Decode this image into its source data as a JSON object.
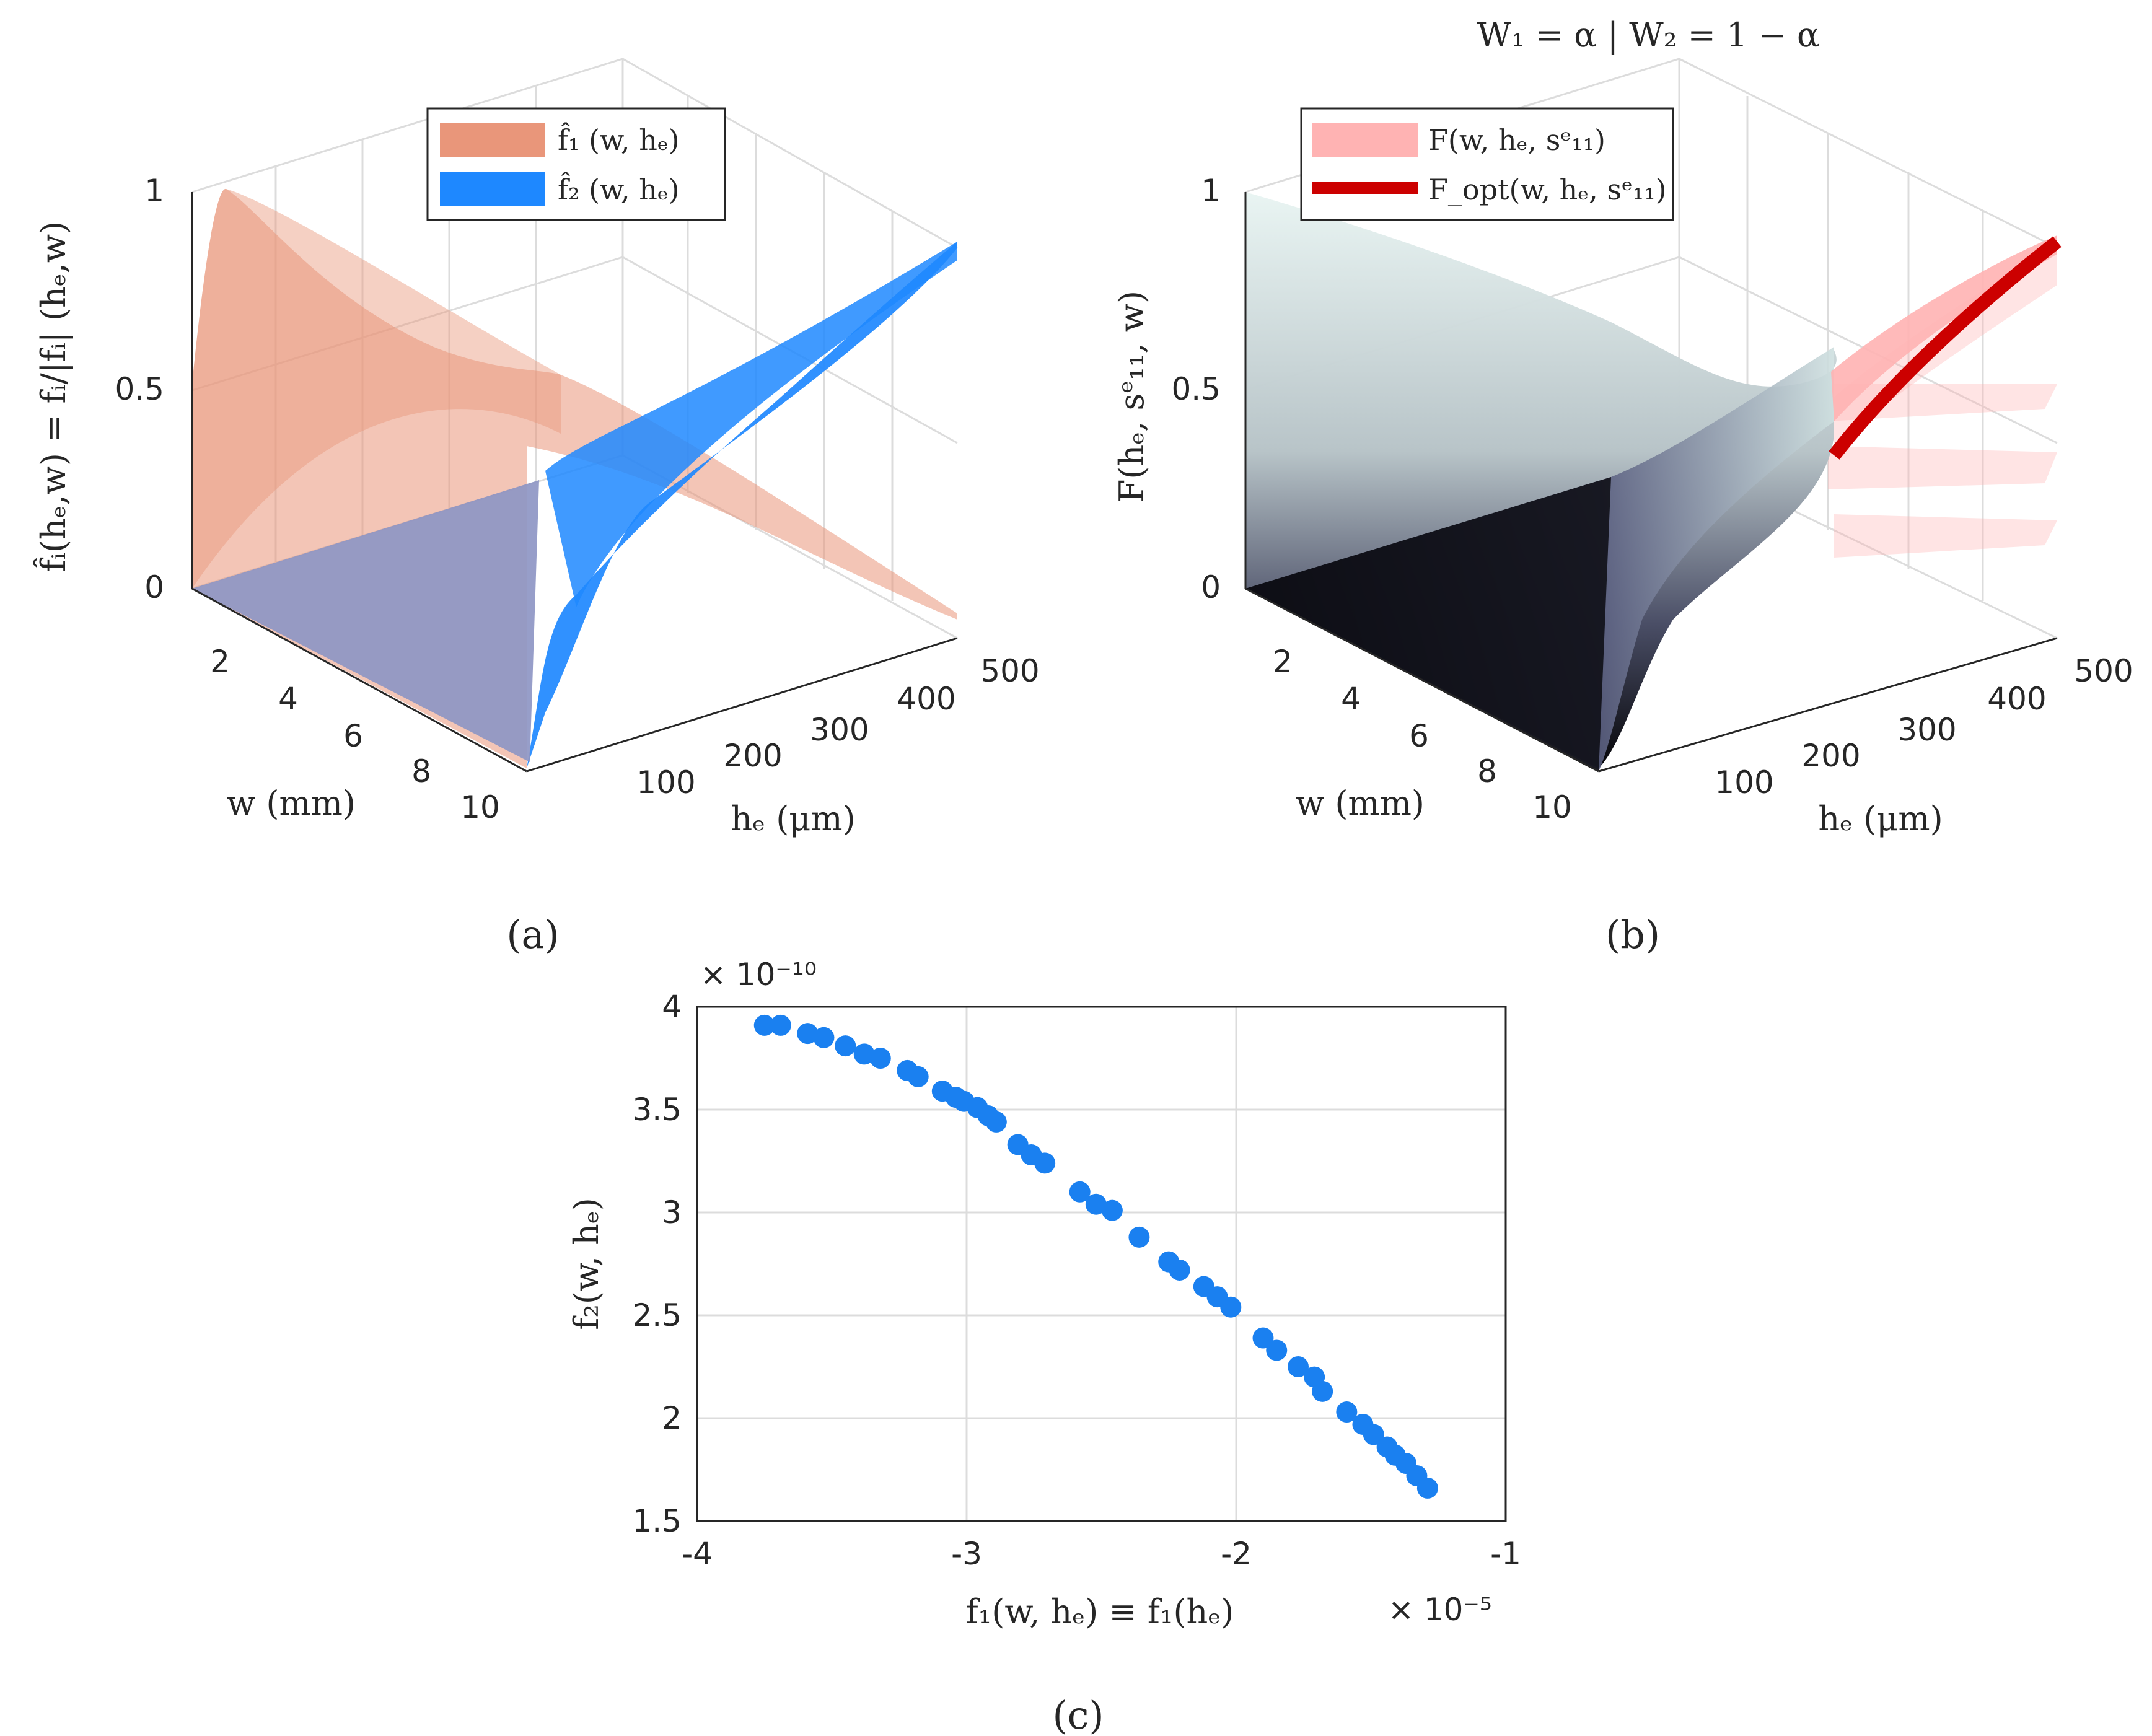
{
  "panels": {
    "a": {
      "label": "(a)",
      "legend": [
        "f̂₁ (w, hₑ)",
        "f̂₂ (w, hₑ)"
      ],
      "zlabel": "f̂ᵢ(hₑ,w) = fᵢ/|fᵢ| (hₑ,w)",
      "xlabel": "w  (mm)",
      "ylabel": "hₑ  (μm)",
      "w_ticks": [
        "2",
        "4",
        "6",
        "8",
        "10"
      ],
      "he_ticks": [
        "100",
        "200",
        "300",
        "400",
        "500"
      ],
      "z_ticks": [
        "0",
        "0.5",
        "1"
      ],
      "colors": {
        "f1": "#e9967a",
        "f2": "#1e88ff",
        "overlap": "#8e96c4"
      }
    },
    "b": {
      "label": "(b)",
      "title": "W₁ = α  |  W₂ = 1 − α",
      "legend": [
        "F(w, hₑ, sᵉ₁₁)",
        "F_opt(w, hₑ, sᵉ₁₁)"
      ],
      "zlabel": "F(hₑ, sᵉ₁₁, w)",
      "xlabel": "w  (mm)",
      "ylabel": "hₑ  (μm)",
      "w_ticks": [
        "2",
        "4",
        "6",
        "8",
        "10"
      ],
      "he_ticks": [
        "100",
        "200",
        "300",
        "400",
        "500"
      ],
      "z_ticks": [
        "0",
        "0.5",
        "1"
      ],
      "colors": {
        "surface": "#ffb3b3",
        "opt": "#cc0000"
      }
    },
    "c": {
      "label": "(c)",
      "xlabel": "f₁(w, hₑ) ≡ f₁(hₑ)",
      "ylabel": "f₂(w, hₑ)",
      "x_exponent": "× 10⁻⁵",
      "y_exponent": "× 10⁻¹⁰"
    }
  },
  "chart_data": {
    "type": "scatter",
    "marker_color": "#1a80f0",
    "xlim": [
      -4,
      -1
    ],
    "ylim": [
      1.5,
      4
    ],
    "x_ticks": [
      -4,
      -3,
      -2,
      -1
    ],
    "y_ticks": [
      1.5,
      2,
      2.5,
      3,
      3.5,
      4
    ],
    "x_tick_labels": [
      "-4",
      "-3",
      "-2",
      "-1"
    ],
    "y_tick_labels": [
      "1.5",
      "2",
      "2.5",
      "3",
      "3.5",
      "4"
    ],
    "grid": true,
    "x": [
      -3.75,
      -3.69,
      -3.59,
      -3.53,
      -3.45,
      -3.38,
      -3.32,
      -3.22,
      -3.18,
      -3.09,
      -3.04,
      -3.01,
      -2.96,
      -2.92,
      -2.89,
      -2.81,
      -2.76,
      -2.71,
      -2.58,
      -2.52,
      -2.46,
      -2.36,
      -2.25,
      -2.21,
      -2.12,
      -2.07,
      -2.02,
      -1.9,
      -1.85,
      -1.77,
      -1.71,
      -1.68,
      -1.59,
      -1.53,
      -1.49,
      -1.44,
      -1.41,
      -1.37,
      -1.33,
      -1.29
    ],
    "y": [
      3.91,
      3.91,
      3.87,
      3.85,
      3.81,
      3.77,
      3.75,
      3.69,
      3.66,
      3.59,
      3.56,
      3.54,
      3.51,
      3.47,
      3.44,
      3.33,
      3.28,
      3.24,
      3.1,
      3.04,
      3.01,
      2.88,
      2.76,
      2.72,
      2.64,
      2.59,
      2.54,
      2.39,
      2.33,
      2.25,
      2.2,
      2.13,
      2.03,
      1.97,
      1.92,
      1.86,
      1.82,
      1.78,
      1.72,
      1.66
    ]
  }
}
